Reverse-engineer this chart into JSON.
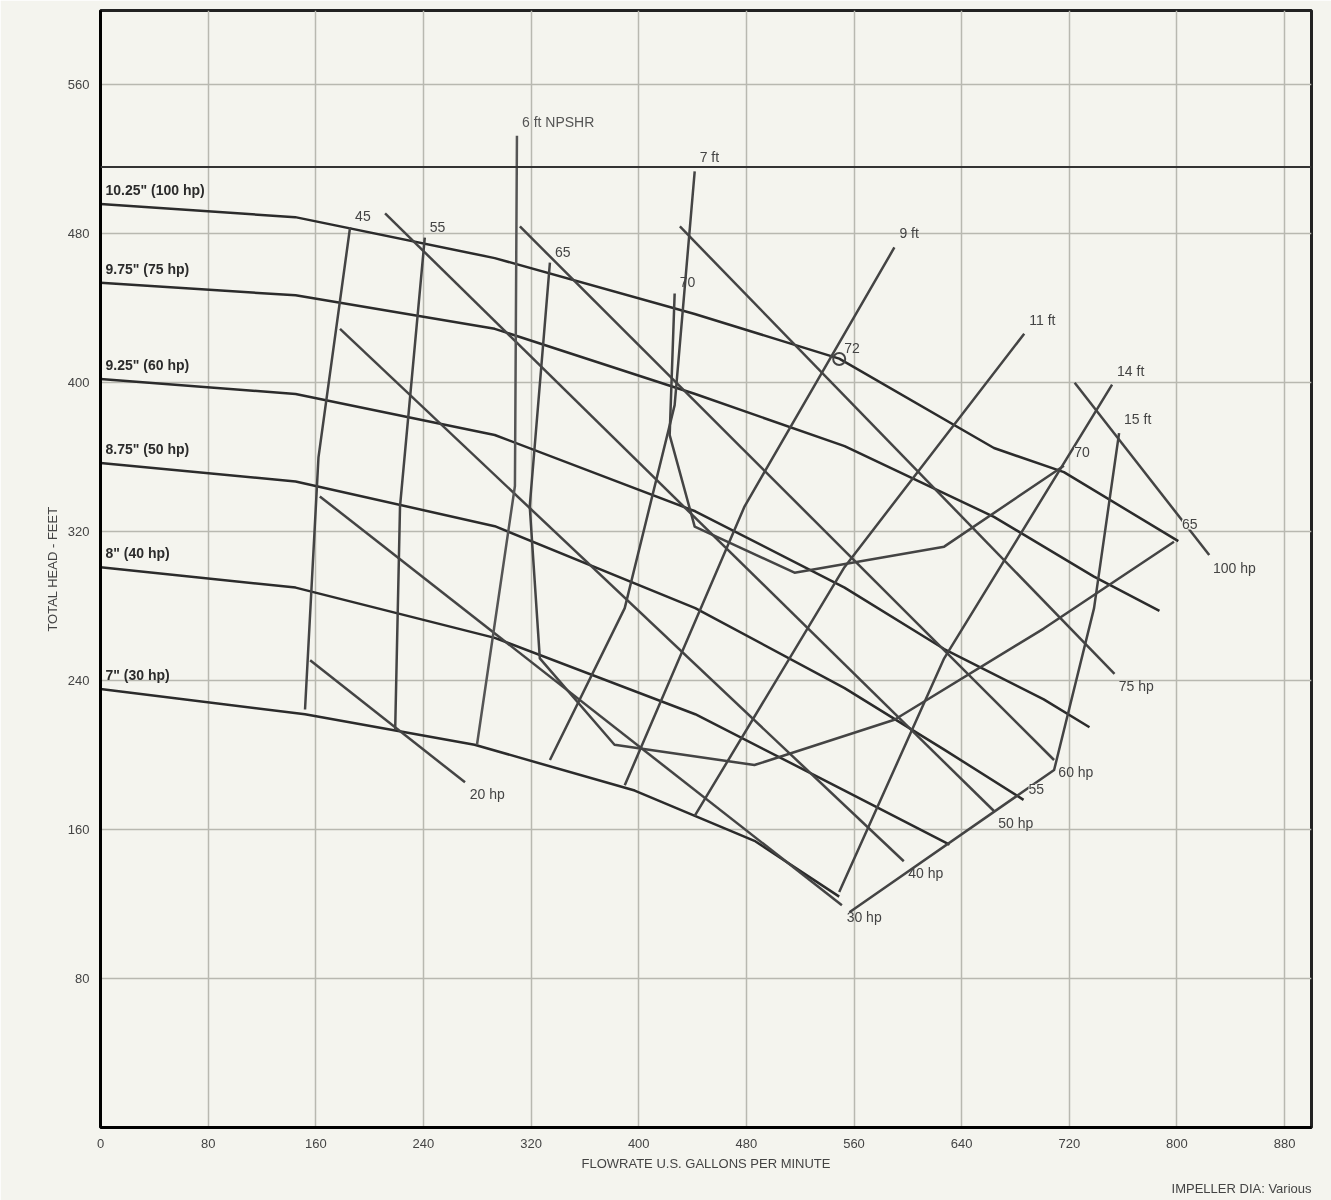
{
  "chart_data": {
    "type": "line",
    "xlabel": "FLOWRATE U.S. GALLONS PER MINUTE",
    "ylabel": "TOTAL HEAD - FEET",
    "xlim": [
      0,
      900
    ],
    "ylim": [
      0,
      600
    ],
    "xticks": [
      0,
      80,
      160,
      240,
      320,
      400,
      480,
      560,
      640,
      720,
      800,
      880
    ],
    "yticks": [
      80,
      160,
      240,
      320,
      400,
      480,
      560
    ],
    "grid": true,
    "legend": false,
    "line_style": "solid",
    "ref_lines": [
      {
        "axis": "y",
        "value": 516
      }
    ],
    "annotations": [
      "IMPELLER DIA: Various",
      {
        "text": "70",
        "x": 720,
        "y": 357
      },
      {
        "text": "65",
        "x": 800,
        "y": 318
      },
      {
        "text": "55",
        "x": 686,
        "y": 176
      }
    ],
    "series": [
      {
        "name": "10.25\" (100 hp)",
        "color": "#2b2b2b",
        "x": [
          801,
          716,
          664,
          549,
          441.6,
          293,
          144.7,
          0
        ],
        "values": [
          315,
          352,
          365,
          413,
          437,
          467,
          489,
          496
        ]
      },
      {
        "name": "9.75\" (75 hp)",
        "color": "#2b2b2b",
        "x": [
          787,
          738,
          664,
          553,
          442,
          293,
          145,
          0
        ],
        "values": [
          277.5,
          296,
          328,
          366,
          394,
          429,
          447,
          453.7
        ]
      },
      {
        "name": "9.25\" (60 hp)",
        "color": "#2b2b2b",
        "x": [
          735,
          701,
          627,
          553,
          442,
          293,
          145,
          0
        ],
        "values": [
          215,
          230,
          257,
          290,
          331,
          372,
          394,
          402
        ]
      },
      {
        "name": "8.75\" (50 hp)",
        "color": "#2b2b2b",
        "x": [
          686,
          627,
          553,
          442,
          293,
          145,
          0
        ],
        "values": [
          176,
          203,
          236,
          279,
          323,
          347,
          357
        ]
      },
      {
        "name": "8\" (40 hp)",
        "color": "#2b2b2b",
        "x": [
          631,
          553,
          442,
          293,
          145,
          0
        ],
        "values": [
          152,
          181,
          222,
          263,
          290,
          301
        ]
      },
      {
        "name": "7\" (30 hp)",
        "color": "#2b2b2b",
        "x": [
          549,
          486,
          397,
          278,
          152,
          0
        ],
        "values": [
          124,
          154,
          181,
          205.6,
          222,
          235.5
        ]
      },
      {
        "name": "20 hp",
        "color": "#444444",
        "x": [
          155.8,
          270.9
        ],
        "values": [
          251,
          185.4
        ]
      },
      {
        "name": "30 hp",
        "color": "#444444",
        "x": [
          163,
          551
        ],
        "values": [
          339,
          119.4
        ]
      },
      {
        "name": "40 hp",
        "color": "#444444",
        "x": [
          178,
          597
        ],
        "values": [
          429,
          143
        ]
      },
      {
        "name": "50 hp",
        "color": "#444444",
        "x": [
          211.5,
          664
        ],
        "values": [
          491,
          170
        ]
      },
      {
        "name": "60 hp",
        "color": "#444444",
        "x": [
          311.7,
          708.7
        ],
        "values": [
          484,
          197.4
        ]
      },
      {
        "name": "75 hp",
        "color": "#444444",
        "x": [
          430.6,
          753.6
        ],
        "values": [
          484,
          243.7
        ]
      },
      {
        "name": "100 hp",
        "color": "#444444",
        "x": [
          724,
          824
        ],
        "values": [
          400,
          307.5
        ]
      },
      {
        "name": "6 ft NPSHR",
        "color": "#555555",
        "x": [
          279.8,
          308,
          309.5
        ],
        "values": [
          205.6,
          344.6,
          532.7
        ]
      },
      {
        "name": "7 ft",
        "color": "#444444",
        "x": [
          334,
          389.6,
          426.7,
          441.6
        ],
        "values": [
          197.4,
          279,
          388,
          513.6
        ]
      },
      {
        "name": "9 ft",
        "color": "#444444",
        "x": [
          389.6,
          478.7,
          590
        ],
        "values": [
          183.8,
          333.7,
          472.7
        ]
      },
      {
        "name": "11 ft",
        "color": "#444444",
        "x": [
          441.6,
          552.9,
          686.5
        ],
        "values": [
          167.4,
          301,
          426.4
        ]
      },
      {
        "name": "14 ft",
        "color": "#444444",
        "x": [
          549,
          627,
          751.8
        ],
        "values": [
          126.5,
          252,
          399
        ]
      },
      {
        "name": "15 ft",
        "color": "#444444",
        "x": [
          556.6,
          708.7,
          738.4,
          757
        ],
        "values": [
          115.6,
          192,
          279,
          373
        ]
      },
      {
        "name": "45",
        "color": "#444444",
        "x": [
          152,
          162,
          185.5
        ],
        "values": [
          224.5,
          360,
          483.6
        ]
      },
      {
        "name": "55",
        "color": "#444444",
        "x": [
          219,
          222.6,
          241
        ],
        "values": [
          213.7,
          333.7,
          478
        ]
      },
      {
        "name": "65",
        "color": "#444444",
        "x": [
          797.8,
          701,
          590,
          486,
          382,
          326.5,
          319,
          334
        ],
        "values": [
          314.6,
          268,
          219,
          194.7,
          205.6,
          252,
          333.7,
          464.6
        ]
      },
      {
        "name": "70",
        "color": "#444444",
        "x": [
          716,
          627,
          515.8,
          441.6,
          423,
          426.7
        ],
        "values": [
          355.5,
          312,
          298,
          322.8,
          371.9,
          448
        ]
      },
      {
        "name": "72",
        "type": "scatter",
        "color": "#444444",
        "x": [
          549
        ],
        "values": [
          412.8
        ]
      }
    ]
  }
}
